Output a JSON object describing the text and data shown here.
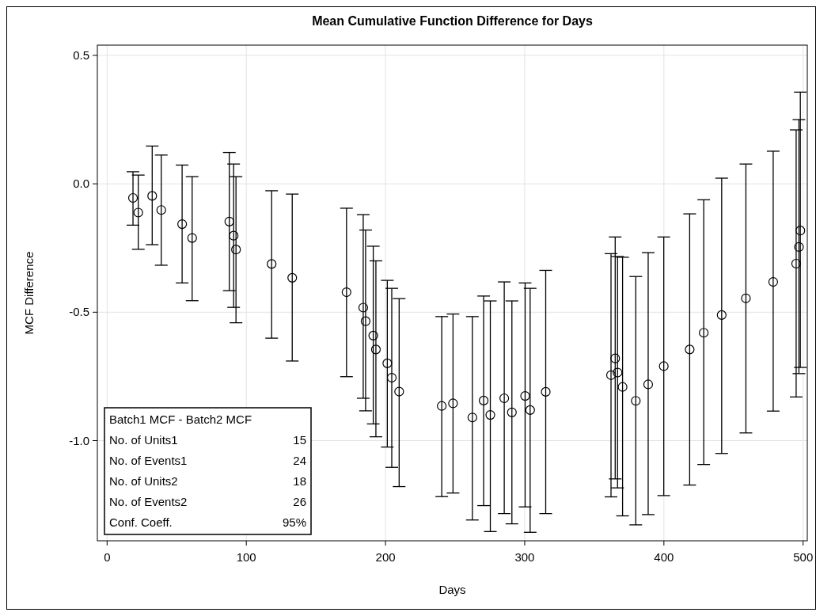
{
  "chart_data": {
    "type": "scatter",
    "title": "Mean Cumulative Function Difference for Days",
    "xlabel": "Days",
    "ylabel": "MCF Difference",
    "x": [
      18.6,
      22.4,
      32.4,
      38.9,
      53.9,
      61.1,
      87.8,
      90.9,
      92.6,
      118.2,
      133,
      172,
      184,
      185.7,
      191.2,
      193.1,
      201.3,
      204.5,
      209.8,
      240.4,
      248.5,
      262.4,
      270.5,
      275.3,
      285.3,
      290.8,
      300.3,
      303.9,
      315.1,
      362,
      365,
      366.7,
      370.3,
      379.8,
      388.7,
      399.9,
      418.5,
      428.6,
      441.5,
      458.9,
      478.5,
      495,
      497,
      498
    ],
    "series": [
      {
        "color": "#000000",
        "values": [
          -0.055,
          -0.112,
          -0.047,
          -0.102,
          -0.157,
          -0.211,
          -0.147,
          -0.202,
          -0.256,
          -0.312,
          -0.366,
          -0.422,
          -0.482,
          -0.535,
          -0.591,
          -0.645,
          -0.699,
          -0.755,
          -0.809,
          -0.865,
          -0.855,
          -0.91,
          -0.844,
          -0.9,
          -0.835,
          -0.89,
          -0.826,
          -0.881,
          -0.81,
          -0.745,
          -0.68,
          -0.735,
          -0.791,
          -0.845,
          -0.781,
          -0.71,
          -0.645,
          -0.58,
          -0.511,
          -0.446,
          -0.382,
          -0.311,
          -0.246,
          -0.182
        ],
        "errors": [
          [
            -0.161,
            0.047
          ],
          [
            -0.255,
            0.034
          ],
          [
            -0.237,
            0.147
          ],
          [
            -0.317,
            0.112
          ],
          [
            -0.386,
            0.073
          ],
          [
            -0.455,
            0.028
          ],
          [
            -0.416,
            0.122
          ],
          [
            -0.481,
            0.077
          ],
          [
            -0.541,
            0.028
          ],
          [
            -0.601,
            -0.027
          ],
          [
            -0.69,
            -0.04
          ],
          [
            -0.751,
            -0.095
          ],
          [
            -0.835,
            -0.12
          ],
          [
            -0.884,
            -0.18
          ],
          [
            -0.935,
            -0.243
          ],
          [
            -0.985,
            -0.3
          ],
          [
            -1.025,
            -0.376
          ],
          [
            -1.104,
            -0.407
          ],
          [
            -1.179,
            -0.447
          ],
          [
            -1.218,
            -0.517
          ],
          [
            -1.204,
            -0.507
          ],
          [
            -1.309,
            -0.517
          ],
          [
            -1.253,
            -0.437
          ],
          [
            -1.354,
            -0.456
          ],
          [
            -1.284,
            -0.382
          ],
          [
            -1.324,
            -0.456
          ],
          [
            -1.258,
            -0.386
          ],
          [
            -1.357,
            -0.407
          ],
          [
            -1.284,
            -0.337
          ],
          [
            -1.219,
            -0.272
          ],
          [
            -1.149,
            -0.207
          ],
          [
            -1.184,
            -0.283
          ],
          [
            -1.293,
            -0.286
          ],
          [
            -1.328,
            -0.361
          ],
          [
            -1.288,
            -0.268
          ],
          [
            -1.214,
            -0.207
          ],
          [
            -1.173,
            -0.117
          ],
          [
            -1.093,
            -0.062
          ],
          [
            -1.05,
            0.022
          ],
          [
            -0.97,
            0.077
          ],
          [
            -0.885,
            0.127
          ],
          [
            -0.83,
            0.21
          ],
          [
            -0.739,
            0.25
          ],
          [
            -0.715,
            0.357
          ]
        ]
      }
    ],
    "xlim": [
      -7,
      503
    ],
    "xticks": [
      0,
      100,
      200,
      300,
      400,
      500
    ],
    "ylim": [
      -1.39,
      0.54
    ],
    "yticks": [
      {
        "value": -1,
        "label": "-1.0"
      },
      {
        "value": -0.5,
        "label": "-0.5"
      },
      {
        "value": 0,
        "label": "0.0"
      },
      {
        "value": 0.5,
        "label": "0.5"
      }
    ],
    "grid": true,
    "marker": "circle",
    "annotations": [
      "Batch1 MCF - Batch2 MCF",
      "No. of Units1",
      "15",
      "No. of Events1",
      "24",
      "No. of Units2",
      "18",
      "No. of Events2",
      "26",
      "Conf. Coeff.",
      "95%"
    ]
  }
}
